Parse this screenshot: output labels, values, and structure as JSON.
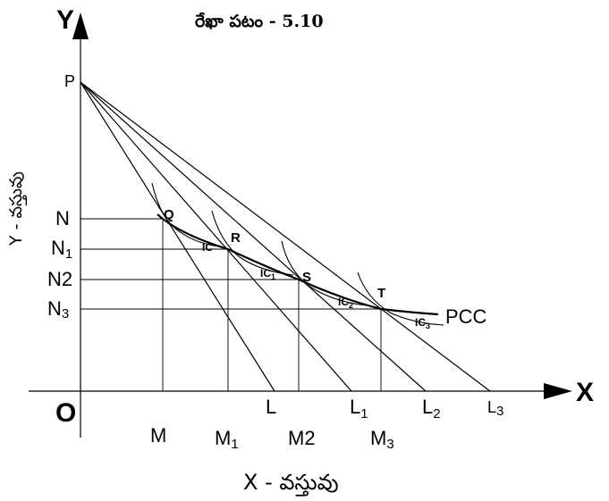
{
  "title": "రేఖా పటం - 5.10",
  "x_caption": "X - వస్తువు",
  "y_caption": "Y - వస్తువు",
  "axes": {
    "x": "X",
    "y": "Y",
    "origin": "O"
  },
  "intercept": "P",
  "budget_lines": [
    {
      "main": "L",
      "sub": ""
    },
    {
      "main": "L",
      "sub": "1"
    },
    {
      "main": "L",
      "sub": "2"
    },
    {
      "main": "L",
      "sub": "3"
    }
  ],
  "x_marks": [
    {
      "main": "M",
      "sub": ""
    },
    {
      "main": "M",
      "sub": "1"
    },
    {
      "main": "M",
      "sub": "2"
    },
    {
      "main": "M",
      "sub": "3"
    }
  ],
  "y_marks": [
    {
      "main": "N",
      "sub": ""
    },
    {
      "main": "N",
      "sub": "1"
    },
    {
      "main": "N",
      "sub": "2"
    },
    {
      "main": "N",
      "sub": "3"
    }
  ],
  "equilibrium_points": [
    "Q",
    "R",
    "S",
    "T"
  ],
  "indifference_curves": [
    {
      "main": "IC",
      "sub": ""
    },
    {
      "main": "IC",
      "sub": "1"
    },
    {
      "main": "IC",
      "sub": "2"
    },
    {
      "main": "IC",
      "sub": "3"
    }
  ],
  "pcc_label": "PCC"
}
